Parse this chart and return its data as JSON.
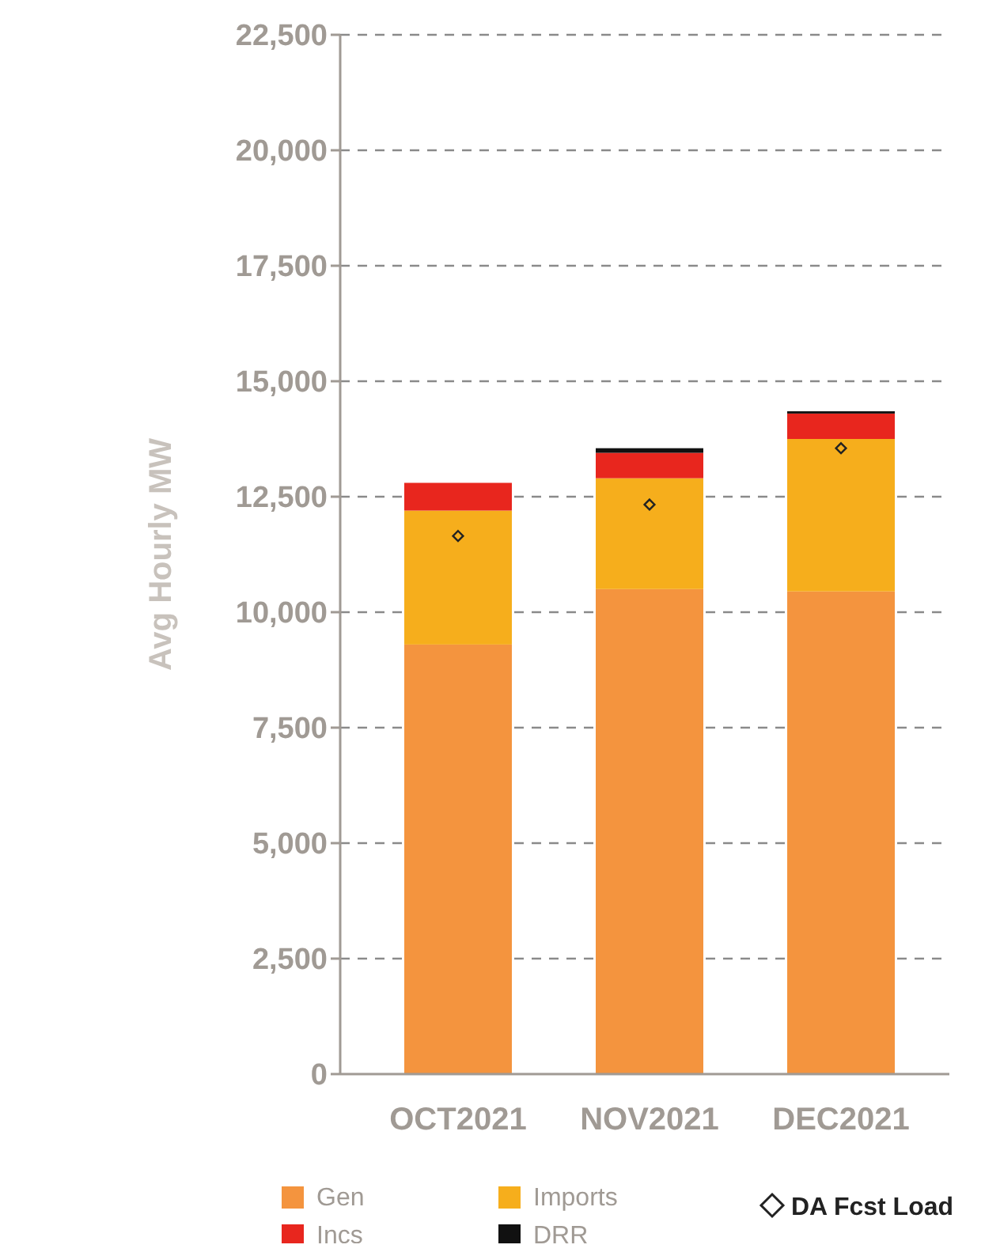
{
  "chart_data": {
    "type": "bar",
    "stacked": true,
    "ylabel": "Avg Hourly MW",
    "categories": [
      "OCT2021",
      "NOV2021",
      "DEC2021"
    ],
    "series": [
      {
        "name": "Gen",
        "color": "#f4943e",
        "values": [
          9300,
          10500,
          10450
        ]
      },
      {
        "name": "Imports",
        "color": "#f6ae1c",
        "values": [
          2900,
          2400,
          3300
        ]
      },
      {
        "name": "Incs",
        "color": "#e8261e",
        "values": [
          600,
          550,
          550
        ]
      },
      {
        "name": "DRR",
        "color": "#111111",
        "values": [
          null,
          100,
          50
        ]
      },
      {
        "name": "DA Fcst Load",
        "type": "scatter",
        "marker": "diamond",
        "color": "#222222",
        "x": [
          "OCT2021",
          "NOV2021",
          "DEC2021"
        ],
        "values": [
          11650,
          12330,
          13550
        ]
      }
    ],
    "ylim": [
      0,
      22500
    ],
    "yticks": [
      {
        "value": 0,
        "label": "0"
      },
      {
        "value": 2500,
        "label": "2,500"
      },
      {
        "value": 5000,
        "label": "5,000"
      },
      {
        "value": 7500,
        "label": "7,500"
      },
      {
        "value": 10000,
        "label": "10,000"
      },
      {
        "value": 12500,
        "label": "12,500"
      },
      {
        "value": 15000,
        "label": "15,000"
      },
      {
        "value": 17500,
        "label": "17,500"
      },
      {
        "value": 20000,
        "label": "20,000"
      },
      {
        "value": 22500,
        "label": "22,500"
      }
    ],
    "grid": "y",
    "legend": "bottom"
  }
}
